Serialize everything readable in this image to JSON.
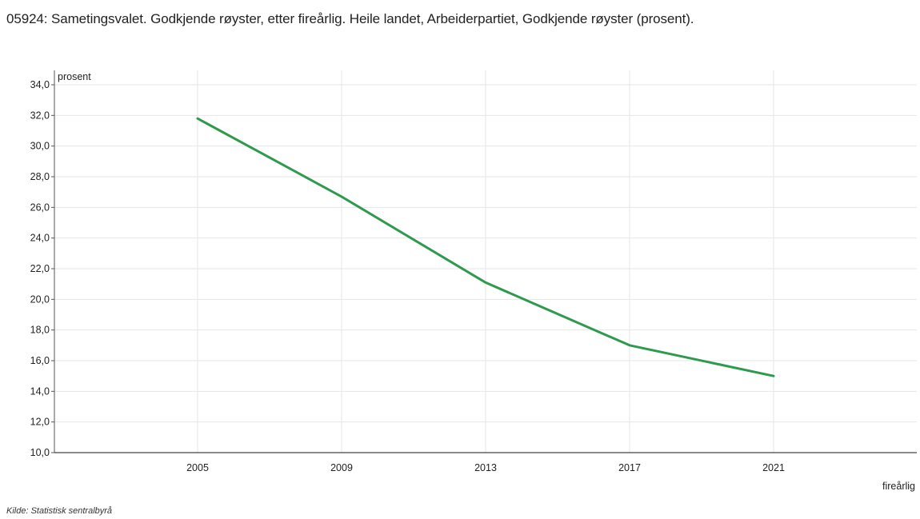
{
  "title": "05924: Sametingsvalet. Godkjende røyster, etter fireårlig. Heile landet, Arbeiderpartiet, Godkjende røyster (prosent).",
  "source": "Kilde:  Statistisk sentralbyrå",
  "chart_data": {
    "type": "line",
    "title": "05924: Sametingsvalet. Godkjende røyster, etter fireårlig. Heile landet, Arbeiderpartiet, Godkjende røyster (prosent).",
    "xlabel": "fireårlig",
    "ylabel": "prosent",
    "categories": [
      "2005",
      "2009",
      "2013",
      "2017",
      "2021"
    ],
    "series": [
      {
        "values": [
          31.8,
          26.7,
          21.1,
          17.0,
          15.0
        ],
        "color": "#2e9a4e"
      }
    ],
    "ylim": [
      10.0,
      34.0
    ],
    "yticks": [
      "10,0",
      "12,0",
      "14,0",
      "16,0",
      "18,0",
      "20,0",
      "22,0",
      "24,0",
      "26,0",
      "28,0",
      "30,0",
      "32,0",
      "34,0"
    ],
    "grid": true,
    "legend": "none"
  }
}
